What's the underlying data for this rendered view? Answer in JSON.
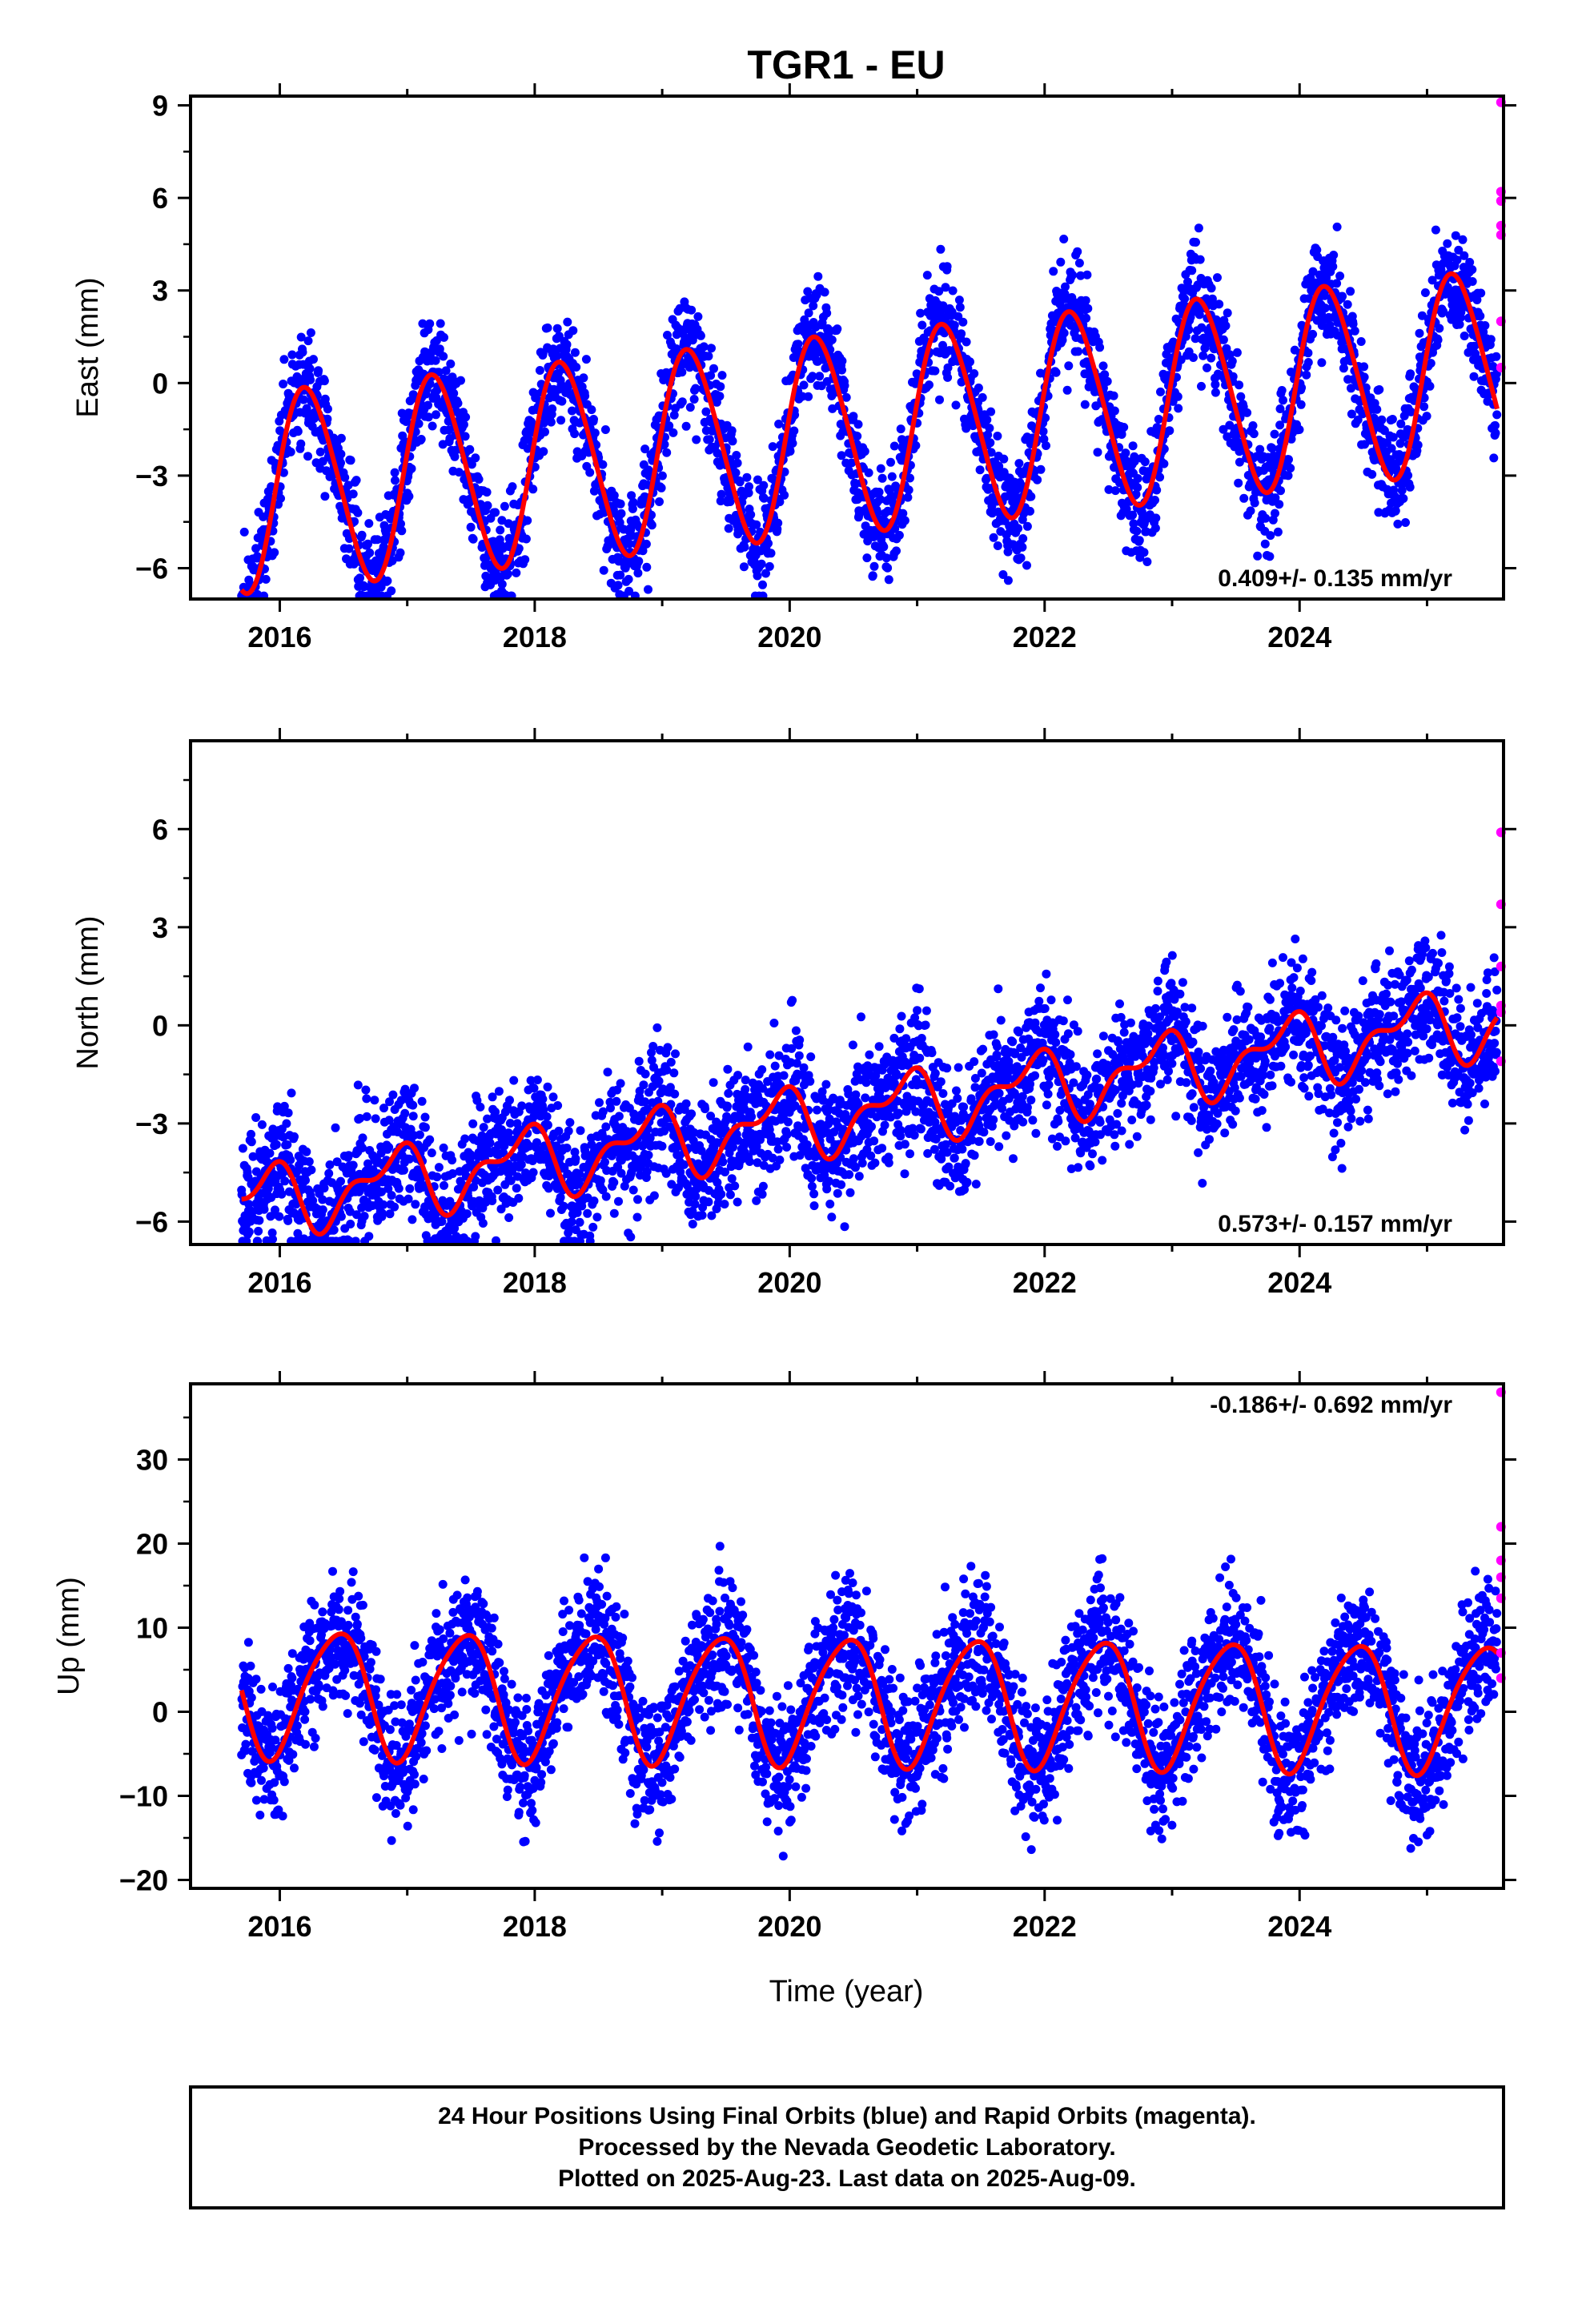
{
  "title": "TGR1 - EU",
  "colors": {
    "final": "#0000ff",
    "rapid": "#ff00ff",
    "model": "#ff0000"
  },
  "xlabel": "Time (year)",
  "footer": [
    "24 Hour Positions Using Final Orbits (blue) and Rapid Orbits (magenta).",
    "Processed by the Nevada Geodetic Laboratory.",
    "Plotted on 2025-Aug-23. Last data on 2025-Aug-09."
  ],
  "chart_data": [
    {
      "type": "scatter",
      "ylabel": "East (mm)",
      "xlim": [
        2015.3,
        2025.6
      ],
      "ylim": [
        -7,
        9.3
      ],
      "xticks": [
        2016,
        2018,
        2020,
        2022,
        2024
      ],
      "yticks": [
        -6,
        -3,
        0,
        3,
        6,
        9
      ],
      "rate": "0.409+/- 0.135 mm/yr",
      "rate_position": "bottom-right",
      "model": {
        "offset": -1.6,
        "trend": 0.409,
        "annual_amp": 3.2,
        "annual_phase": 0.2,
        "semiannual_amp": 0.3,
        "semiannual_phase": 0.5,
        "noise": 0.9,
        "seed": 11
      },
      "rapid_points": [
        [
          2025.58,
          9.1
        ],
        [
          2025.58,
          6.2
        ],
        [
          2025.58,
          5.9
        ],
        [
          2025.58,
          5.1
        ],
        [
          2025.58,
          4.8
        ],
        [
          2025.58,
          2.0
        ],
        [
          2025.58,
          0.5
        ]
      ]
    },
    {
      "type": "scatter",
      "ylabel": "North (mm)",
      "xlim": [
        2015.3,
        2025.6
      ],
      "ylim": [
        -6.7,
        8.7
      ],
      "xticks": [
        2016,
        2018,
        2020,
        2022,
        2024
      ],
      "yticks": [
        -6,
        -3,
        0,
        3,
        6
      ],
      "rate": "0.573+/- 0.157 mm/yr",
      "rate_position": "bottom-right",
      "model": {
        "offset": -2.7,
        "trend": 0.573,
        "annual_amp": 0.9,
        "annual_phase": 2.3,
        "semiannual_amp": 0.5,
        "semiannual_phase": 1.1,
        "noise": 1.0,
        "seed": 23
      },
      "rapid_points": [
        [
          2025.58,
          5.9
        ],
        [
          2025.58,
          3.7
        ],
        [
          2025.58,
          1.8
        ],
        [
          2025.58,
          0.6
        ],
        [
          2025.58,
          0.4
        ],
        [
          2025.58,
          -1.1
        ]
      ]
    },
    {
      "type": "scatter",
      "ylabel": "Up (mm)",
      "xlim": [
        2015.3,
        2025.6
      ],
      "ylim": [
        -21,
        39
      ],
      "xticks": [
        2016,
        2018,
        2020,
        2022,
        2024
      ],
      "yticks": [
        -20,
        -10,
        0,
        10,
        20,
        30
      ],
      "rate": "-0.186+/- 0.692 mm/yr",
      "rate_position": "top-right",
      "model": {
        "offset": 1.5,
        "trend": -0.186,
        "annual_amp": 7.5,
        "annual_phase": -1.2,
        "semiannual_amp": 1.0,
        "semiannual_phase": 0.0,
        "noise": 4.0,
        "seed": 37
      },
      "rapid_points": [
        [
          2025.58,
          38.0
        ],
        [
          2025.58,
          22.0
        ],
        [
          2025.58,
          18.0
        ],
        [
          2025.58,
          16.0
        ],
        [
          2025.58,
          13.5
        ],
        [
          2025.58,
          7.0
        ],
        [
          2025.58,
          4.0
        ]
      ]
    }
  ]
}
